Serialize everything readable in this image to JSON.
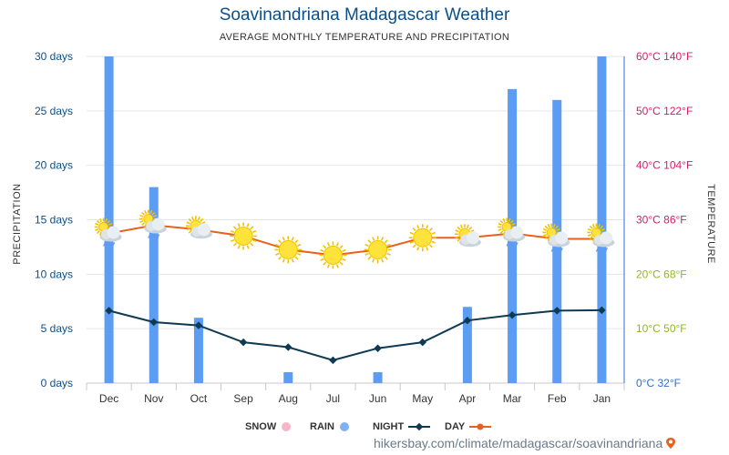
{
  "header": {
    "title": "Soavinandriana Madagascar Weather",
    "subtitle": "AVERAGE MONTHLY TEMPERATURE AND PRECIPITATION"
  },
  "axes": {
    "left_title": "PRECIPITATION",
    "right_title": "TEMPERATURE"
  },
  "legend": {
    "day": "DAY",
    "night": "NIGHT",
    "rain": "RAIN",
    "snow": "SNOW"
  },
  "source": "hikersbay.com/climate/madagascar/soavinandriana",
  "colors": {
    "rain": "#5c9cf2",
    "day": "#e8601c",
    "night": "#0e3a52",
    "snow": "#f4b6c8",
    "left_axis": "#0b4f8a",
    "right_axis_hot": "#d0206a",
    "right_axis_mid": "#8fb81a",
    "right_axis_cold": "#2a6fd6"
  },
  "chart_data": {
    "type": "bar",
    "x_direction": "right-to-left",
    "categories": [
      "Jan",
      "Feb",
      "Mar",
      "Apr",
      "May",
      "Jun",
      "Jul",
      "Aug",
      "Sep",
      "Oct",
      "Nov",
      "Dec"
    ],
    "rain_days": [
      30,
      26,
      27,
      7,
      0,
      1,
      0,
      1,
      0,
      6,
      18,
      30
    ],
    "snow_days": [
      0,
      0,
      0,
      0,
      0,
      0,
      0,
      0,
      0,
      0,
      0,
      0
    ],
    "day_temp_c": [
      26.5,
      26.5,
      27.5,
      26.7,
      26.7,
      24.5,
      23.5,
      24.5,
      27.0,
      28.2,
      29.0,
      27.5
    ],
    "night_temp_c": [
      13.4,
      13.3,
      12.5,
      11.5,
      7.5,
      6.4,
      4.2,
      6.6,
      7.5,
      10.6,
      11.2,
      13.3
    ],
    "weather_icons": [
      "cloud-rain",
      "cloud-rain",
      "cloud-rain",
      "partly-cloudy",
      "sunny",
      "sunny",
      "sunny",
      "sunny",
      "sunny",
      "partly-cloudy",
      "cloud-rain",
      "cloud-rain"
    ],
    "left_axis": {
      "ylim": [
        0,
        30
      ],
      "ticks": [
        0,
        5,
        10,
        15,
        20,
        25,
        30
      ],
      "tick_labels": [
        "0 days",
        "5 days",
        "10 days",
        "15 days",
        "20 days",
        "25 days",
        "30 days"
      ]
    },
    "right_axis": {
      "ylim_c": [
        0,
        60
      ],
      "ticks_c": [
        0,
        10,
        20,
        30,
        40,
        50,
        60
      ],
      "tick_labels": [
        "0°C 32°F",
        "10°C 50°F",
        "20°C 68°F",
        "30°C 86°F",
        "40°C 104°F",
        "50°C 122°F",
        "60°C 140°F"
      ]
    },
    "grid": true
  }
}
